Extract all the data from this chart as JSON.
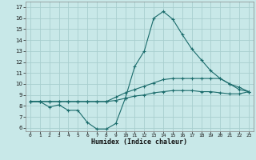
{
  "xlabel": "Humidex (Indice chaleur)",
  "bg_color": "#c8e8e8",
  "line_color": "#1a6b6b",
  "grid_color": "#a8cece",
  "xlim": [
    -0.5,
    23.5
  ],
  "ylim": [
    5.7,
    17.5
  ],
  "xticks": [
    0,
    1,
    2,
    3,
    4,
    5,
    6,
    7,
    8,
    9,
    10,
    11,
    12,
    13,
    14,
    15,
    16,
    17,
    18,
    19,
    20,
    21,
    22,
    23
  ],
  "yticks": [
    6,
    7,
    8,
    9,
    10,
    11,
    12,
    13,
    14,
    15,
    16,
    17
  ],
  "line1_x": [
    0,
    1,
    2,
    3,
    4,
    5,
    6,
    7,
    8,
    9,
    10,
    11,
    12,
    13,
    14,
    15,
    16,
    17,
    18,
    19,
    20,
    21,
    22,
    23
  ],
  "line1_y": [
    8.4,
    8.4,
    7.9,
    8.1,
    7.6,
    7.6,
    6.5,
    5.9,
    5.9,
    6.4,
    8.7,
    11.6,
    13.0,
    16.0,
    16.6,
    15.9,
    14.5,
    13.2,
    12.2,
    11.2,
    10.5,
    10.0,
    9.5,
    9.3
  ],
  "line2_x": [
    0,
    1,
    2,
    3,
    4,
    5,
    6,
    7,
    8,
    9,
    10,
    11,
    12,
    13,
    14,
    15,
    16,
    17,
    18,
    19,
    20,
    21,
    22,
    23
  ],
  "line2_y": [
    8.4,
    8.4,
    8.4,
    8.4,
    8.4,
    8.4,
    8.4,
    8.4,
    8.4,
    8.8,
    9.2,
    9.5,
    9.8,
    10.1,
    10.4,
    10.5,
    10.5,
    10.5,
    10.5,
    10.5,
    10.5,
    10.0,
    9.7,
    9.3
  ],
  "line3_x": [
    0,
    1,
    2,
    3,
    4,
    5,
    6,
    7,
    8,
    9,
    10,
    11,
    12,
    13,
    14,
    15,
    16,
    17,
    18,
    19,
    20,
    21,
    22,
    23
  ],
  "line3_y": [
    8.4,
    8.4,
    8.4,
    8.4,
    8.4,
    8.4,
    8.4,
    8.4,
    8.4,
    8.5,
    8.7,
    8.9,
    9.0,
    9.2,
    9.3,
    9.4,
    9.4,
    9.4,
    9.3,
    9.3,
    9.2,
    9.1,
    9.1,
    9.3
  ]
}
